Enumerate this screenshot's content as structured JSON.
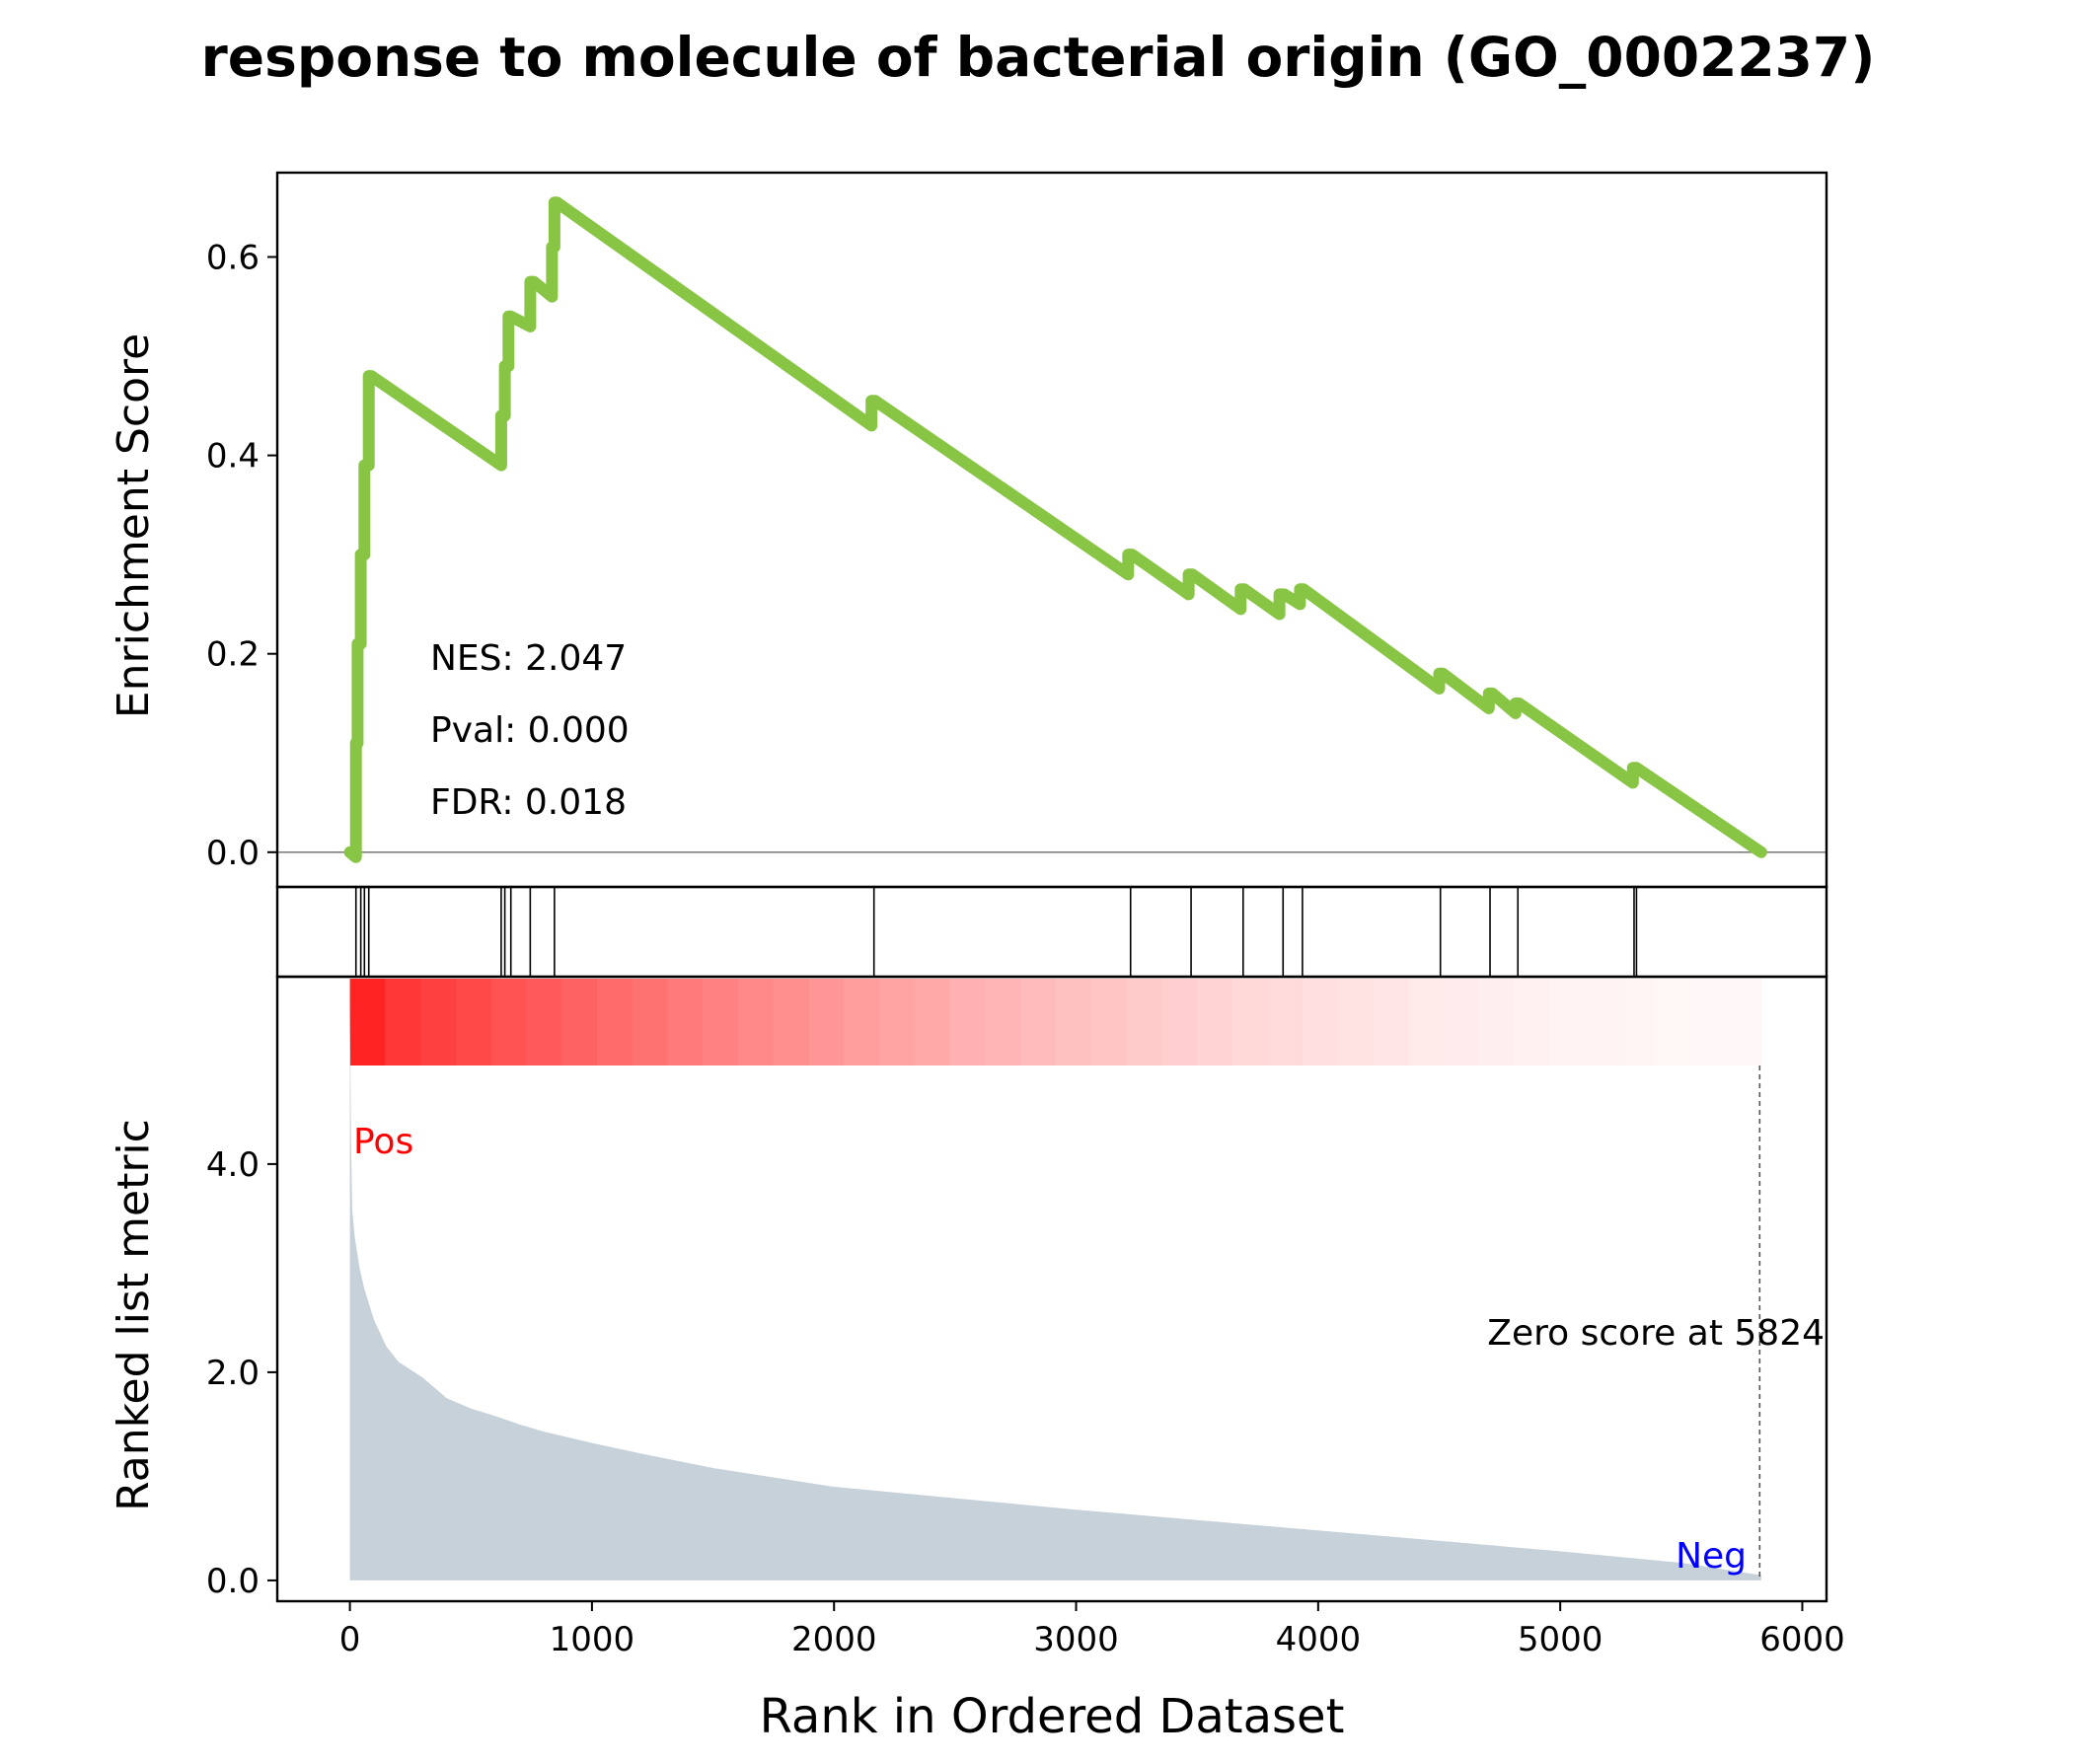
{
  "title": "response to molecule of bacterial origin (GO_0002237)",
  "stats": {
    "nes": "NES: 2.047",
    "pval": "Pval: 0.000",
    "fdr": "FDR: 0.018"
  },
  "labels": {
    "pos": "Pos",
    "neg": "Neg",
    "zero_score": "Zero score at 5824"
  },
  "colors": {
    "es_line": "#88c544",
    "hits": "#000000",
    "ranked_fill": "#c7d1da",
    "pos": "#ff0000",
    "neg": "#0000ff",
    "heat_start": "#ff0000",
    "heat_end": "#ffffff"
  },
  "chart_data": [
    {
      "type": "line",
      "panel": "enrichment",
      "title": "response to molecule of bacterial origin (GO_0002237)",
      "ylabel": "Enrichment Score",
      "xlim": [
        -300,
        6100
      ],
      "ylim": [
        -0.035,
        0.685
      ],
      "yticks": [
        0.0,
        0.2,
        0.4,
        0.6
      ],
      "ytick_labels": [
        "0.0",
        "0.2",
        "0.4",
        "0.6"
      ],
      "baseline": 0.0,
      "series": [
        {
          "x": [
            0,
            25,
            25,
            32,
            32,
            45,
            45,
            60,
            60,
            78,
            78,
            88,
            88,
            625,
            625,
            640,
            640,
            655,
            655,
            665,
            665,
            745,
            745,
            760,
            760,
            835,
            835,
            845,
            845,
            855,
            855,
            2155,
            2155,
            2170,
            2170,
            3215,
            3215,
            3230,
            3230,
            3465,
            3465,
            3480,
            3480,
            3680,
            3680,
            3695,
            3695,
            3840,
            3840,
            3860,
            3860,
            3925,
            3925,
            3940,
            3940,
            4500,
            4500,
            4515,
            4515,
            4705,
            4705,
            4720,
            4720,
            4815,
            4815,
            4830,
            4830,
            5300,
            5300,
            5315,
            5315,
            5830
          ],
          "y": [
            0.0,
            -0.005,
            0.11,
            0.11,
            0.21,
            0.21,
            0.3,
            0.3,
            0.39,
            0.39,
            0.48,
            0.48,
            0.48,
            0.39,
            0.44,
            0.44,
            0.49,
            0.49,
            0.54,
            0.54,
            0.54,
            0.53,
            0.575,
            0.575,
            0.575,
            0.56,
            0.61,
            0.61,
            0.655,
            0.655,
            0.655,
            0.43,
            0.455,
            0.455,
            0.455,
            0.28,
            0.3,
            0.3,
            0.3,
            0.26,
            0.28,
            0.28,
            0.28,
            0.245,
            0.265,
            0.265,
            0.265,
            0.24,
            0.26,
            0.26,
            0.26,
            0.25,
            0.265,
            0.265,
            0.265,
            0.165,
            0.18,
            0.18,
            0.18,
            0.145,
            0.16,
            0.16,
            0.16,
            0.14,
            0.15,
            0.15,
            0.15,
            0.07,
            0.085,
            0.085,
            0.085,
            0.0
          ]
        }
      ]
    },
    {
      "type": "scatter",
      "panel": "hits",
      "hit_positions": [
        25,
        45,
        60,
        78,
        625,
        640,
        665,
        745,
        845,
        2165,
        3225,
        3475,
        3690,
        3855,
        3935,
        4505,
        4710,
        4825,
        5305,
        5315
      ]
    },
    {
      "type": "heatmap",
      "panel": "rank_gradient",
      "x_range": [
        0,
        5830
      ],
      "bands": 40
    },
    {
      "type": "area",
      "panel": "ranked_list",
      "xlabel": "Rank in Ordered Dataset",
      "ylabel": "Ranked list metric",
      "xlim": [
        -300,
        6100
      ],
      "ylim": [
        -0.2,
        5.8
      ],
      "xticks": [
        0,
        1000,
        2000,
        3000,
        4000,
        5000,
        6000
      ],
      "xtick_labels": [
        "0",
        "1000",
        "2000",
        "3000",
        "4000",
        "5000",
        "6000"
      ],
      "yticks": [
        0.0,
        2.0,
        4.0
      ],
      "ytick_labels": [
        "0.0",
        "2.0",
        "4.0"
      ],
      "zero_score_at": 5824,
      "series": [
        {
          "x": [
            0,
            5,
            10,
            20,
            40,
            60,
            80,
            100,
            150,
            200,
            300,
            350,
            400,
            500,
            600,
            700,
            800,
            1000,
            1200,
            1500,
            2000,
            2500,
            3000,
            3500,
            4000,
            4500,
            5000,
            5500,
            5830
          ],
          "y": [
            5.5,
            4.2,
            3.55,
            3.3,
            3.0,
            2.8,
            2.65,
            2.5,
            2.25,
            2.1,
            1.95,
            1.85,
            1.75,
            1.65,
            1.58,
            1.5,
            1.43,
            1.32,
            1.22,
            1.08,
            0.9,
            0.79,
            0.68,
            0.58,
            0.48,
            0.38,
            0.28,
            0.17,
            0.05
          ]
        }
      ]
    }
  ]
}
